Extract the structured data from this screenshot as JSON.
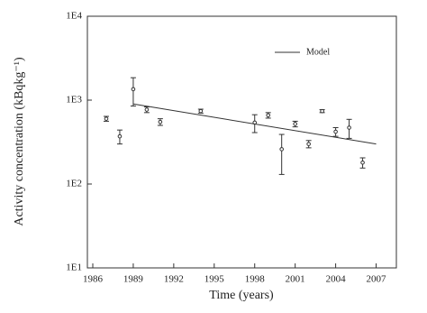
{
  "chart_data": {
    "type": "scatter",
    "x_label": "Time  (years)",
    "y_label": "Activity concentration  (kBqkg⁻¹)",
    "xlim": [
      1985.6,
      2008.5
    ],
    "xticks": [
      1986,
      1989,
      1992,
      1995,
      1998,
      2001,
      2004,
      2007
    ],
    "ylim": [
      10,
      10000
    ],
    "yticks": [
      {
        "value": 10,
        "label": "1E1"
      },
      {
        "value": 100,
        "label": "1E2"
      },
      {
        "value": 1000,
        "label": "1E3"
      },
      {
        "value": 10000,
        "label": "1E4"
      }
    ],
    "log_y": true,
    "legend": "upper right",
    "series": [
      {
        "type": "scatter",
        "color": "#333",
        "x": [
          1987,
          1988,
          1989,
          1990,
          1991,
          1994,
          1998,
          1999,
          2000,
          2001,
          2002,
          2003,
          2004,
          2005,
          2006
        ],
        "values": [
          600,
          370,
          1350,
          770,
          550,
          740,
          540,
          660,
          260,
          520,
          300,
          740,
          420,
          470,
          180
        ],
        "errors": [
          40,
          70,
          500,
          60,
          50,
          40,
          130,
          50,
          130,
          40,
          30,
          30,
          50,
          120,
          25
        ]
      },
      {
        "type": "line",
        "name": "Model",
        "color": "#333",
        "x": [
          1989,
          2007
        ],
        "values": [
          900,
          300
        ]
      }
    ]
  }
}
